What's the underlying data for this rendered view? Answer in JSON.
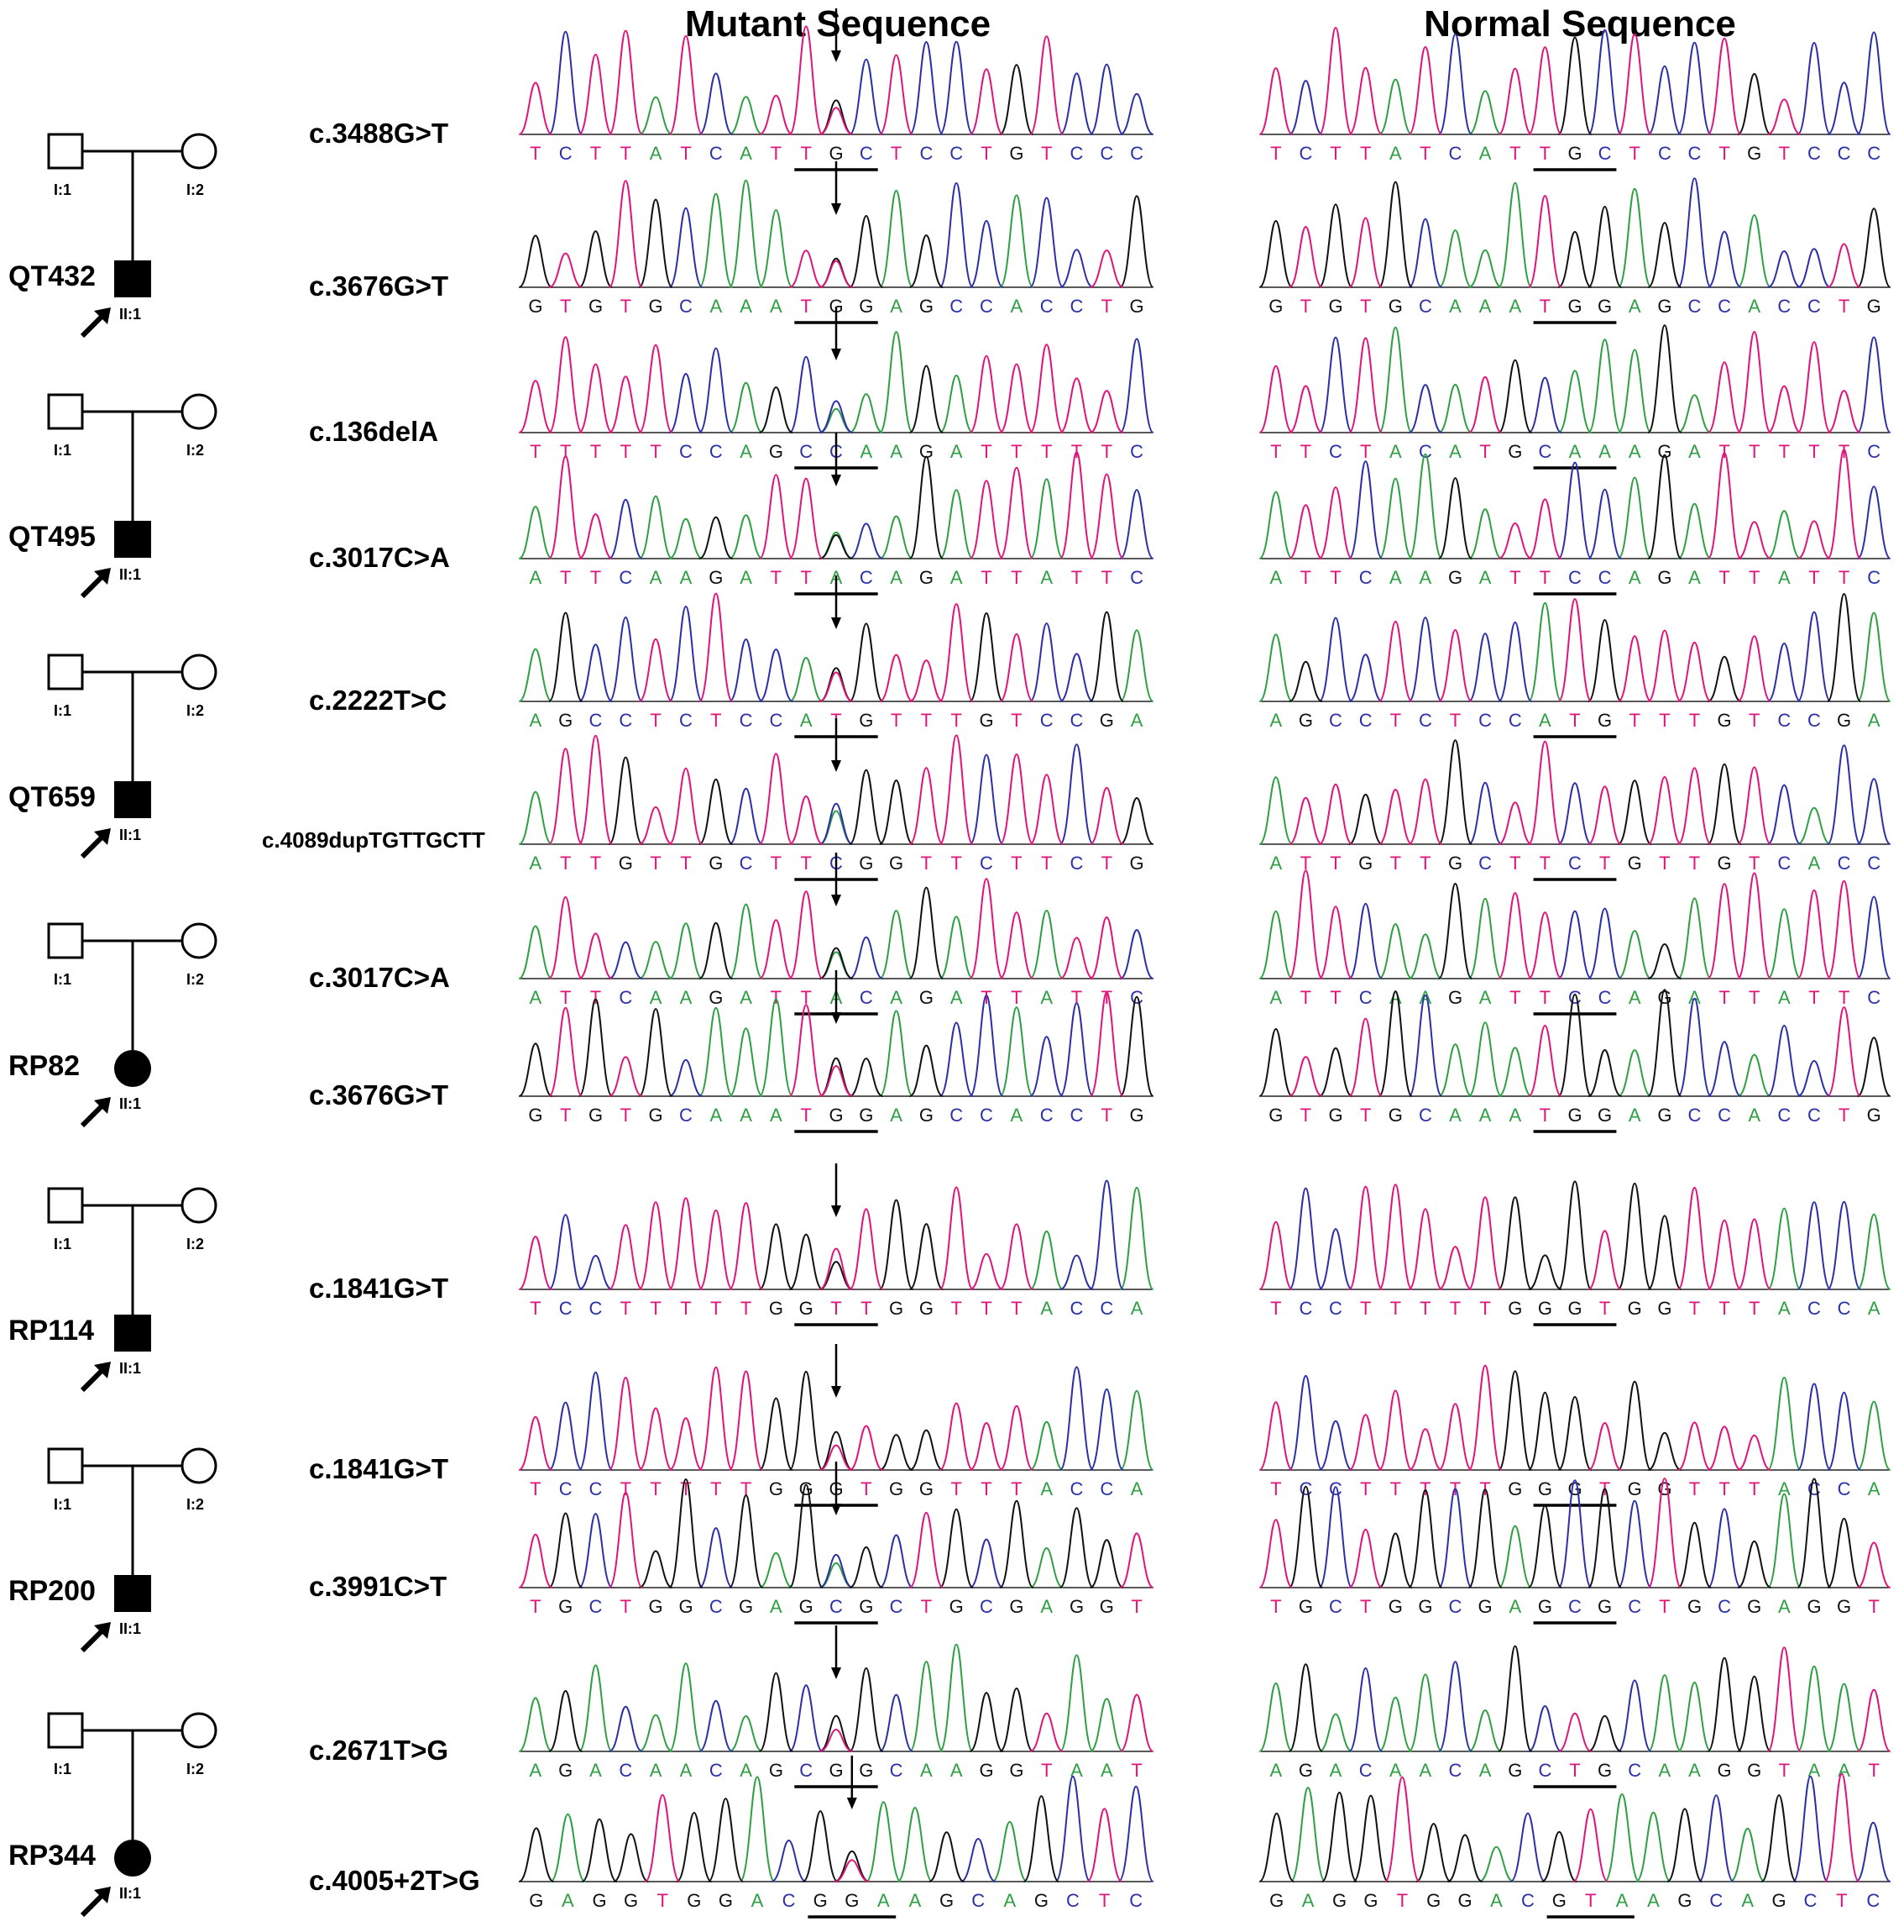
{
  "headers": {
    "mutant": "Mutant Sequence",
    "normal": "Normal Sequence"
  },
  "colors": {
    "A": "#2ea043",
    "C": "#2b2fa8",
    "G": "#111111",
    "T": "#e0147a"
  },
  "families": [
    {
      "id": "QT432",
      "proband_sex": "male",
      "father_label": "I:1",
      "mother_label": "I:2",
      "proband_label": "II:1",
      "variants": [
        {
          "name": "c.3488G>T",
          "mutant_seq": "TCTTATCATTGCTCCTGTCCC",
          "normal_seq": "TCTTATCATTGCTCCTGTCCC"
        },
        {
          "name": "c.3676G>T",
          "mutant_seq": "GTGTGCAAATGGAGCCACCTG",
          "normal_seq": "GTGTGCAAATGGAGCCACCTG"
        }
      ]
    },
    {
      "id": "QT495",
      "proband_sex": "male",
      "father_label": "I:1",
      "mother_label": "I:2",
      "proband_label": "II:1",
      "variants": [
        {
          "name": "c.136delA",
          "mutant_seq": "TTTTTCCAGCCAAGATTTTTC",
          "normal_seq": "TTCTACATGCAAAGATTTTTC"
        },
        {
          "name": "c.3017C>A",
          "mutant_seq": "ATTCAAGATTACAGATTATTC",
          "normal_seq": "ATTCAAGATTCCAGATTATTC"
        }
      ]
    },
    {
      "id": "QT659",
      "proband_sex": "male",
      "father_label": "I:1",
      "mother_label": "I:2",
      "proband_label": "II:1",
      "variants": [
        {
          "name": "c.2222T>C",
          "mutant_seq": "AGCCTCTCCATGTTTGTCCGA",
          "normal_seq": "AGCCTCTCCATGTTTGTCCGA"
        },
        {
          "name": "c.4089dupTGTTGCTT",
          "mutant_seq": "ATTGTTGCTTCGGTTCTTCTG",
          "normal_seq": "ATTGTTGCTTCTGTTGTCACC"
        }
      ]
    },
    {
      "id": "RP82",
      "proband_sex": "female",
      "father_label": "I:1",
      "mother_label": "I:2",
      "proband_label": "II:1",
      "variants": [
        {
          "name": "c.3017C>A",
          "mutant_seq": "ATTCAAGATTACAGATTATTC",
          "normal_seq": "ATTCAAGATTCCAGATTATTC"
        },
        {
          "name": "c.3676G>T",
          "mutant_seq": "GTGTGCAAATGGAGCCACCTG",
          "normal_seq": "GTGTGCAAATGGAGCCACCTG"
        }
      ]
    },
    {
      "id": "RP114",
      "proband_sex": "male",
      "father_label": "I:1",
      "mother_label": "I:2",
      "proband_label": "II:1",
      "variants": [
        {
          "name": "c.1841G>T",
          "mutant_seq": "TCCTTTTTGGTTGGTTTACCA",
          "normal_seq": "TCCTTTTTGGGTGGTTTACCA"
        }
      ]
    },
    {
      "id": "RP200",
      "proband_sex": "male",
      "father_label": "I:1",
      "mother_label": "I:2",
      "proband_label": "II:1",
      "variants": [
        {
          "name": "c.1841G>T",
          "mutant_seq": "TCCTTTTTGGGTGGTTTACCA",
          "normal_seq": "TCCTTTTTGGGTGGTTTACCA"
        },
        {
          "name": "c.3991C>T",
          "mutant_seq": "TGCTGGCGAGCGCTGCGAGGT",
          "normal_seq": "TGCTGGCGAGCGCTGCGAGGT"
        }
      ]
    },
    {
      "id": "RP344",
      "proband_sex": "female",
      "father_label": "I:1",
      "mother_label": "I:2",
      "proband_label": "II:1",
      "variants": [
        {
          "name": "c.2671T>G",
          "mutant_seq": "AGACAACAGCGGCAAGGTAAT",
          "normal_seq": "AGACAACAGCTGCAAGGTAAT"
        },
        {
          "name": "c.4005+2T>G",
          "mutant_seq": "GAGGTGGACGGAAGCAGCTC",
          "normal_seq": "GAGGTGGACGTAAGCAGCTC"
        }
      ]
    }
  ]
}
